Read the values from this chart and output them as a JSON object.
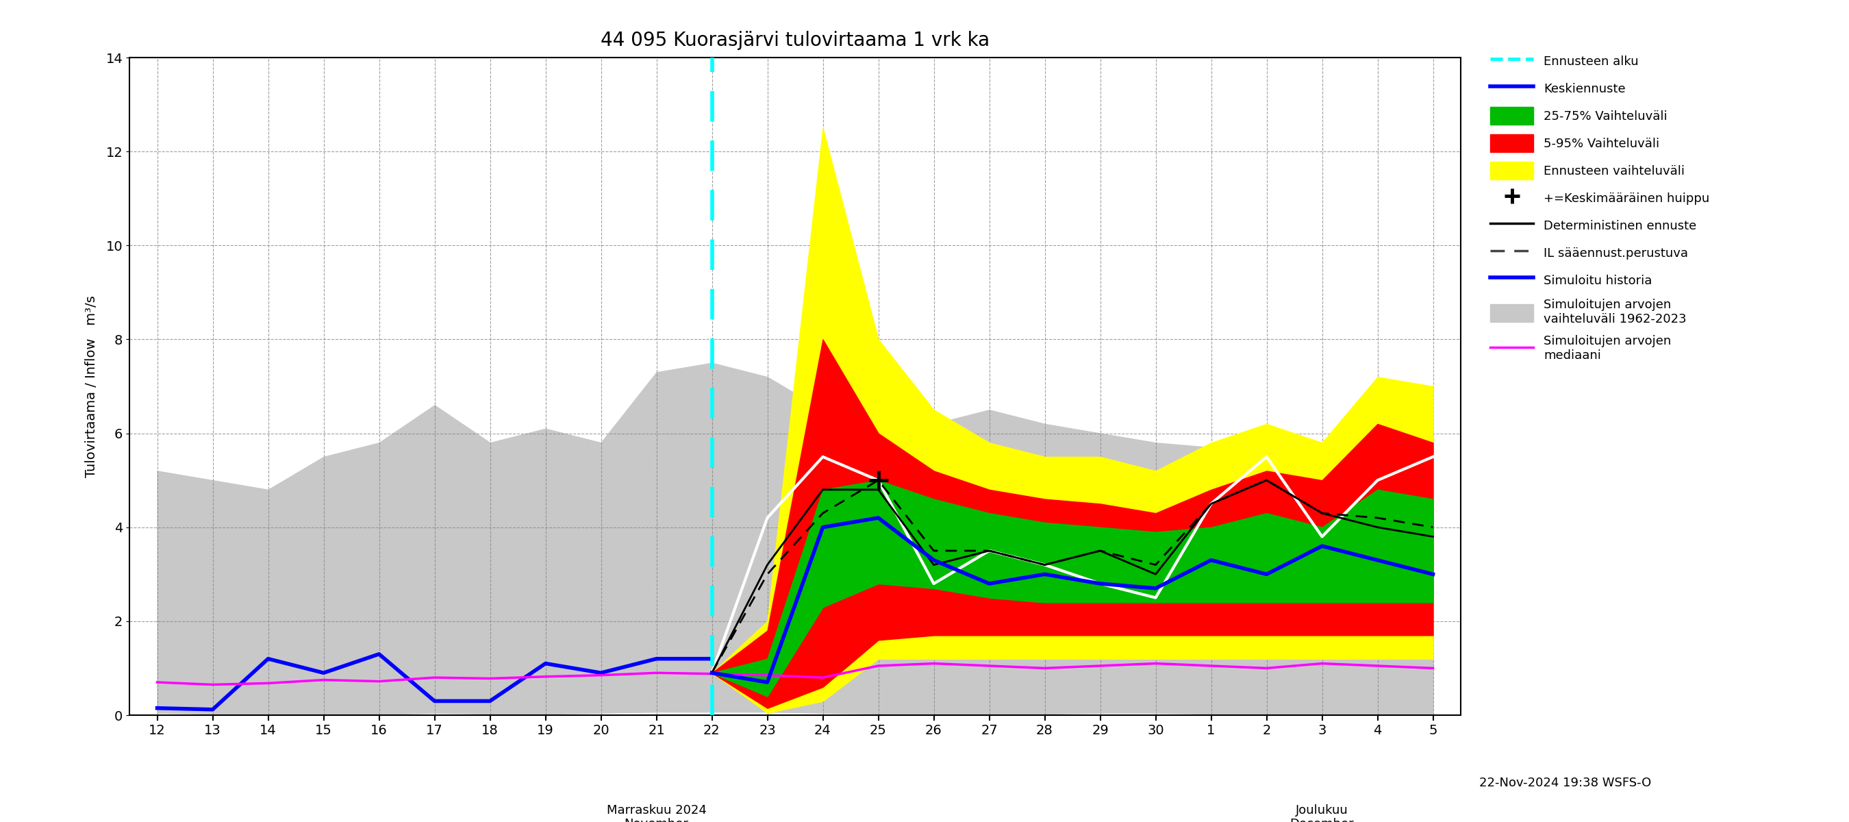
{
  "title": "44 095 Kuorasjärvi tulovirtaama 1 vrk ka",
  "ylabel": "Tulovirtaama / Inflow   m³/s",
  "ylim": [
    0,
    14
  ],
  "yticks": [
    0,
    2,
    4,
    6,
    8,
    10,
    12,
    14
  ],
  "footer_text": "22-Nov-2024 19:38 WSFS-O",
  "sim_hist_x": [
    12,
    13,
    14,
    15,
    16,
    17,
    18,
    19,
    20,
    21,
    22,
    23,
    24,
    25,
    26,
    27,
    28,
    29,
    30,
    1,
    2,
    3,
    4,
    5
  ],
  "sim_hist_upper": [
    5.2,
    5.0,
    4.8,
    5.5,
    5.8,
    6.6,
    5.8,
    6.1,
    5.8,
    7.3,
    7.5,
    7.2,
    6.5,
    6.0,
    6.2,
    6.5,
    6.2,
    6.0,
    5.8,
    5.7,
    6.0,
    5.8,
    5.5,
    6.0
  ],
  "sim_hist_lower": [
    0.05,
    0.03,
    0.02,
    0.03,
    0.02,
    0.05,
    0.03,
    0.03,
    0.05,
    0.07,
    0.07,
    0.07,
    0.05,
    0.03,
    0.02,
    0.03,
    0.03,
    0.05,
    0.05,
    0.03,
    0.03,
    0.03,
    0.03,
    0.03
  ],
  "sim_median_x": [
    12,
    13,
    14,
    15,
    16,
    17,
    18,
    19,
    20,
    21,
    22,
    23,
    24,
    25,
    26,
    27,
    28,
    29,
    30,
    1,
    2,
    3,
    4,
    5
  ],
  "sim_median_y": [
    0.7,
    0.65,
    0.68,
    0.75,
    0.72,
    0.8,
    0.78,
    0.82,
    0.85,
    0.9,
    0.88,
    0.85,
    0.8,
    1.05,
    1.1,
    1.05,
    1.0,
    1.05,
    1.1,
    1.05,
    1.0,
    1.1,
    1.05,
    1.0
  ],
  "sim_hist_blue_x": [
    12,
    13,
    14,
    15,
    16,
    17,
    18,
    19,
    20,
    21,
    22
  ],
  "sim_hist_blue_y": [
    0.15,
    0.12,
    1.2,
    0.9,
    1.3,
    0.3,
    0.3,
    1.1,
    0.9,
    1.2,
    1.2
  ],
  "yellow_band_x": [
    22,
    23,
    24,
    25,
    26,
    27,
    28,
    29,
    30,
    1,
    2,
    3,
    4,
    5
  ],
  "yellow_band_upper": [
    0.9,
    2.0,
    12.5,
    8.0,
    6.5,
    5.8,
    5.5,
    5.5,
    5.2,
    5.8,
    6.2,
    5.8,
    7.2,
    7.0
  ],
  "yellow_band_lower": [
    0.9,
    0.05,
    0.3,
    1.2,
    1.2,
    1.2,
    1.2,
    1.2,
    1.2,
    1.2,
    1.2,
    1.2,
    1.2,
    1.2
  ],
  "red_band_x": [
    22,
    23,
    24,
    25,
    26,
    27,
    28,
    29,
    30,
    1,
    2,
    3,
    4,
    5
  ],
  "red_band_upper": [
    0.9,
    1.8,
    8.0,
    6.0,
    5.2,
    4.8,
    4.6,
    4.5,
    4.3,
    4.8,
    5.2,
    5.0,
    6.2,
    5.8
  ],
  "red_band_lower": [
    0.9,
    0.15,
    0.6,
    1.6,
    1.7,
    1.7,
    1.7,
    1.7,
    1.7,
    1.7,
    1.7,
    1.7,
    1.7,
    1.7
  ],
  "green_band_x": [
    22,
    23,
    24,
    25,
    26,
    27,
    28,
    29,
    30,
    1,
    2,
    3,
    4,
    5
  ],
  "green_band_upper": [
    0.9,
    1.2,
    4.8,
    5.0,
    4.6,
    4.3,
    4.1,
    4.0,
    3.9,
    4.0,
    4.3,
    4.0,
    4.8,
    4.6
  ],
  "green_band_lower": [
    0.9,
    0.4,
    2.3,
    2.8,
    2.7,
    2.5,
    2.4,
    2.4,
    2.4,
    2.4,
    2.4,
    2.4,
    2.4,
    2.4
  ],
  "forecast_blue_x": [
    22,
    23,
    24,
    25,
    26,
    27,
    28,
    29,
    30,
    1,
    2,
    3,
    4,
    5
  ],
  "forecast_blue_y": [
    0.9,
    0.7,
    4.0,
    4.2,
    3.3,
    2.8,
    3.0,
    2.8,
    2.7,
    3.3,
    3.0,
    3.6,
    3.3,
    3.0
  ],
  "white_line_x": [
    22,
    23,
    24,
    25,
    26,
    27,
    28,
    29,
    30,
    1,
    2,
    3,
    4,
    5
  ],
  "white_line_y": [
    0.9,
    4.2,
    5.5,
    5.0,
    2.8,
    3.5,
    3.2,
    2.8,
    2.5,
    4.5,
    5.5,
    3.8,
    5.0,
    5.5
  ],
  "black_solid_x": [
    22,
    23,
    24,
    25,
    26,
    27,
    28,
    29,
    30,
    1,
    2,
    3,
    4,
    5
  ],
  "black_solid_y": [
    0.9,
    3.2,
    4.8,
    4.8,
    3.2,
    3.5,
    3.2,
    3.5,
    3.0,
    4.5,
    5.0,
    4.3,
    4.0,
    3.8
  ],
  "black_dashed_x": [
    22,
    23,
    24,
    25,
    26,
    27,
    28,
    29,
    30,
    1,
    2,
    3,
    4,
    5
  ],
  "black_dashed_y": [
    0.9,
    3.0,
    4.3,
    5.0,
    3.5,
    3.5,
    3.2,
    3.5,
    3.2,
    4.5,
    5.0,
    4.3,
    4.2,
    4.0
  ],
  "cross_x": [
    25
  ],
  "cross_y": [
    5.0
  ],
  "colors": {
    "gray_band": "#c8c8c8",
    "yellow_band": "#ffff00",
    "red_band": "#ff0000",
    "green_band": "#00bb00",
    "blue_line": "#0000ff",
    "white_line": "#ffffff",
    "black_solid": "#000000",
    "black_dashed": "#000000",
    "magenta_line": "#ff00ff",
    "cyan_vline": "#00ffff",
    "forecast_blue": "#0000ff"
  }
}
